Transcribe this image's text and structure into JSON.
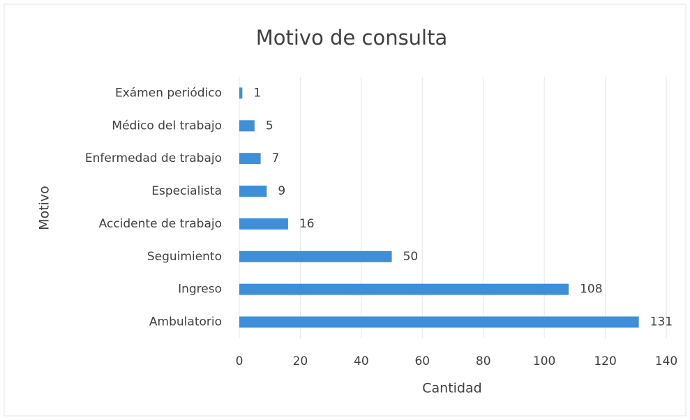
{
  "chart_data": {
    "type": "bar",
    "orientation": "horizontal",
    "title": "Motivo de consulta",
    "x_label": "Cantidad",
    "y_label": "Motivo",
    "categories": [
      "Exámen periódico",
      "Médico del trabajo",
      "Enfermedad de trabajo",
      "Especialista",
      "Accidente de trabajo",
      "Seguimiento",
      "Ingreso",
      "Ambulatorio"
    ],
    "values": [
      1,
      5,
      7,
      9,
      16,
      50,
      108,
      131
    ],
    "color": "#3f8fd8",
    "xlim": [
      0,
      140
    ],
    "xticks": [
      0,
      20,
      40,
      60,
      80,
      100,
      120,
      140
    ],
    "grid": true,
    "data_labels": true
  }
}
